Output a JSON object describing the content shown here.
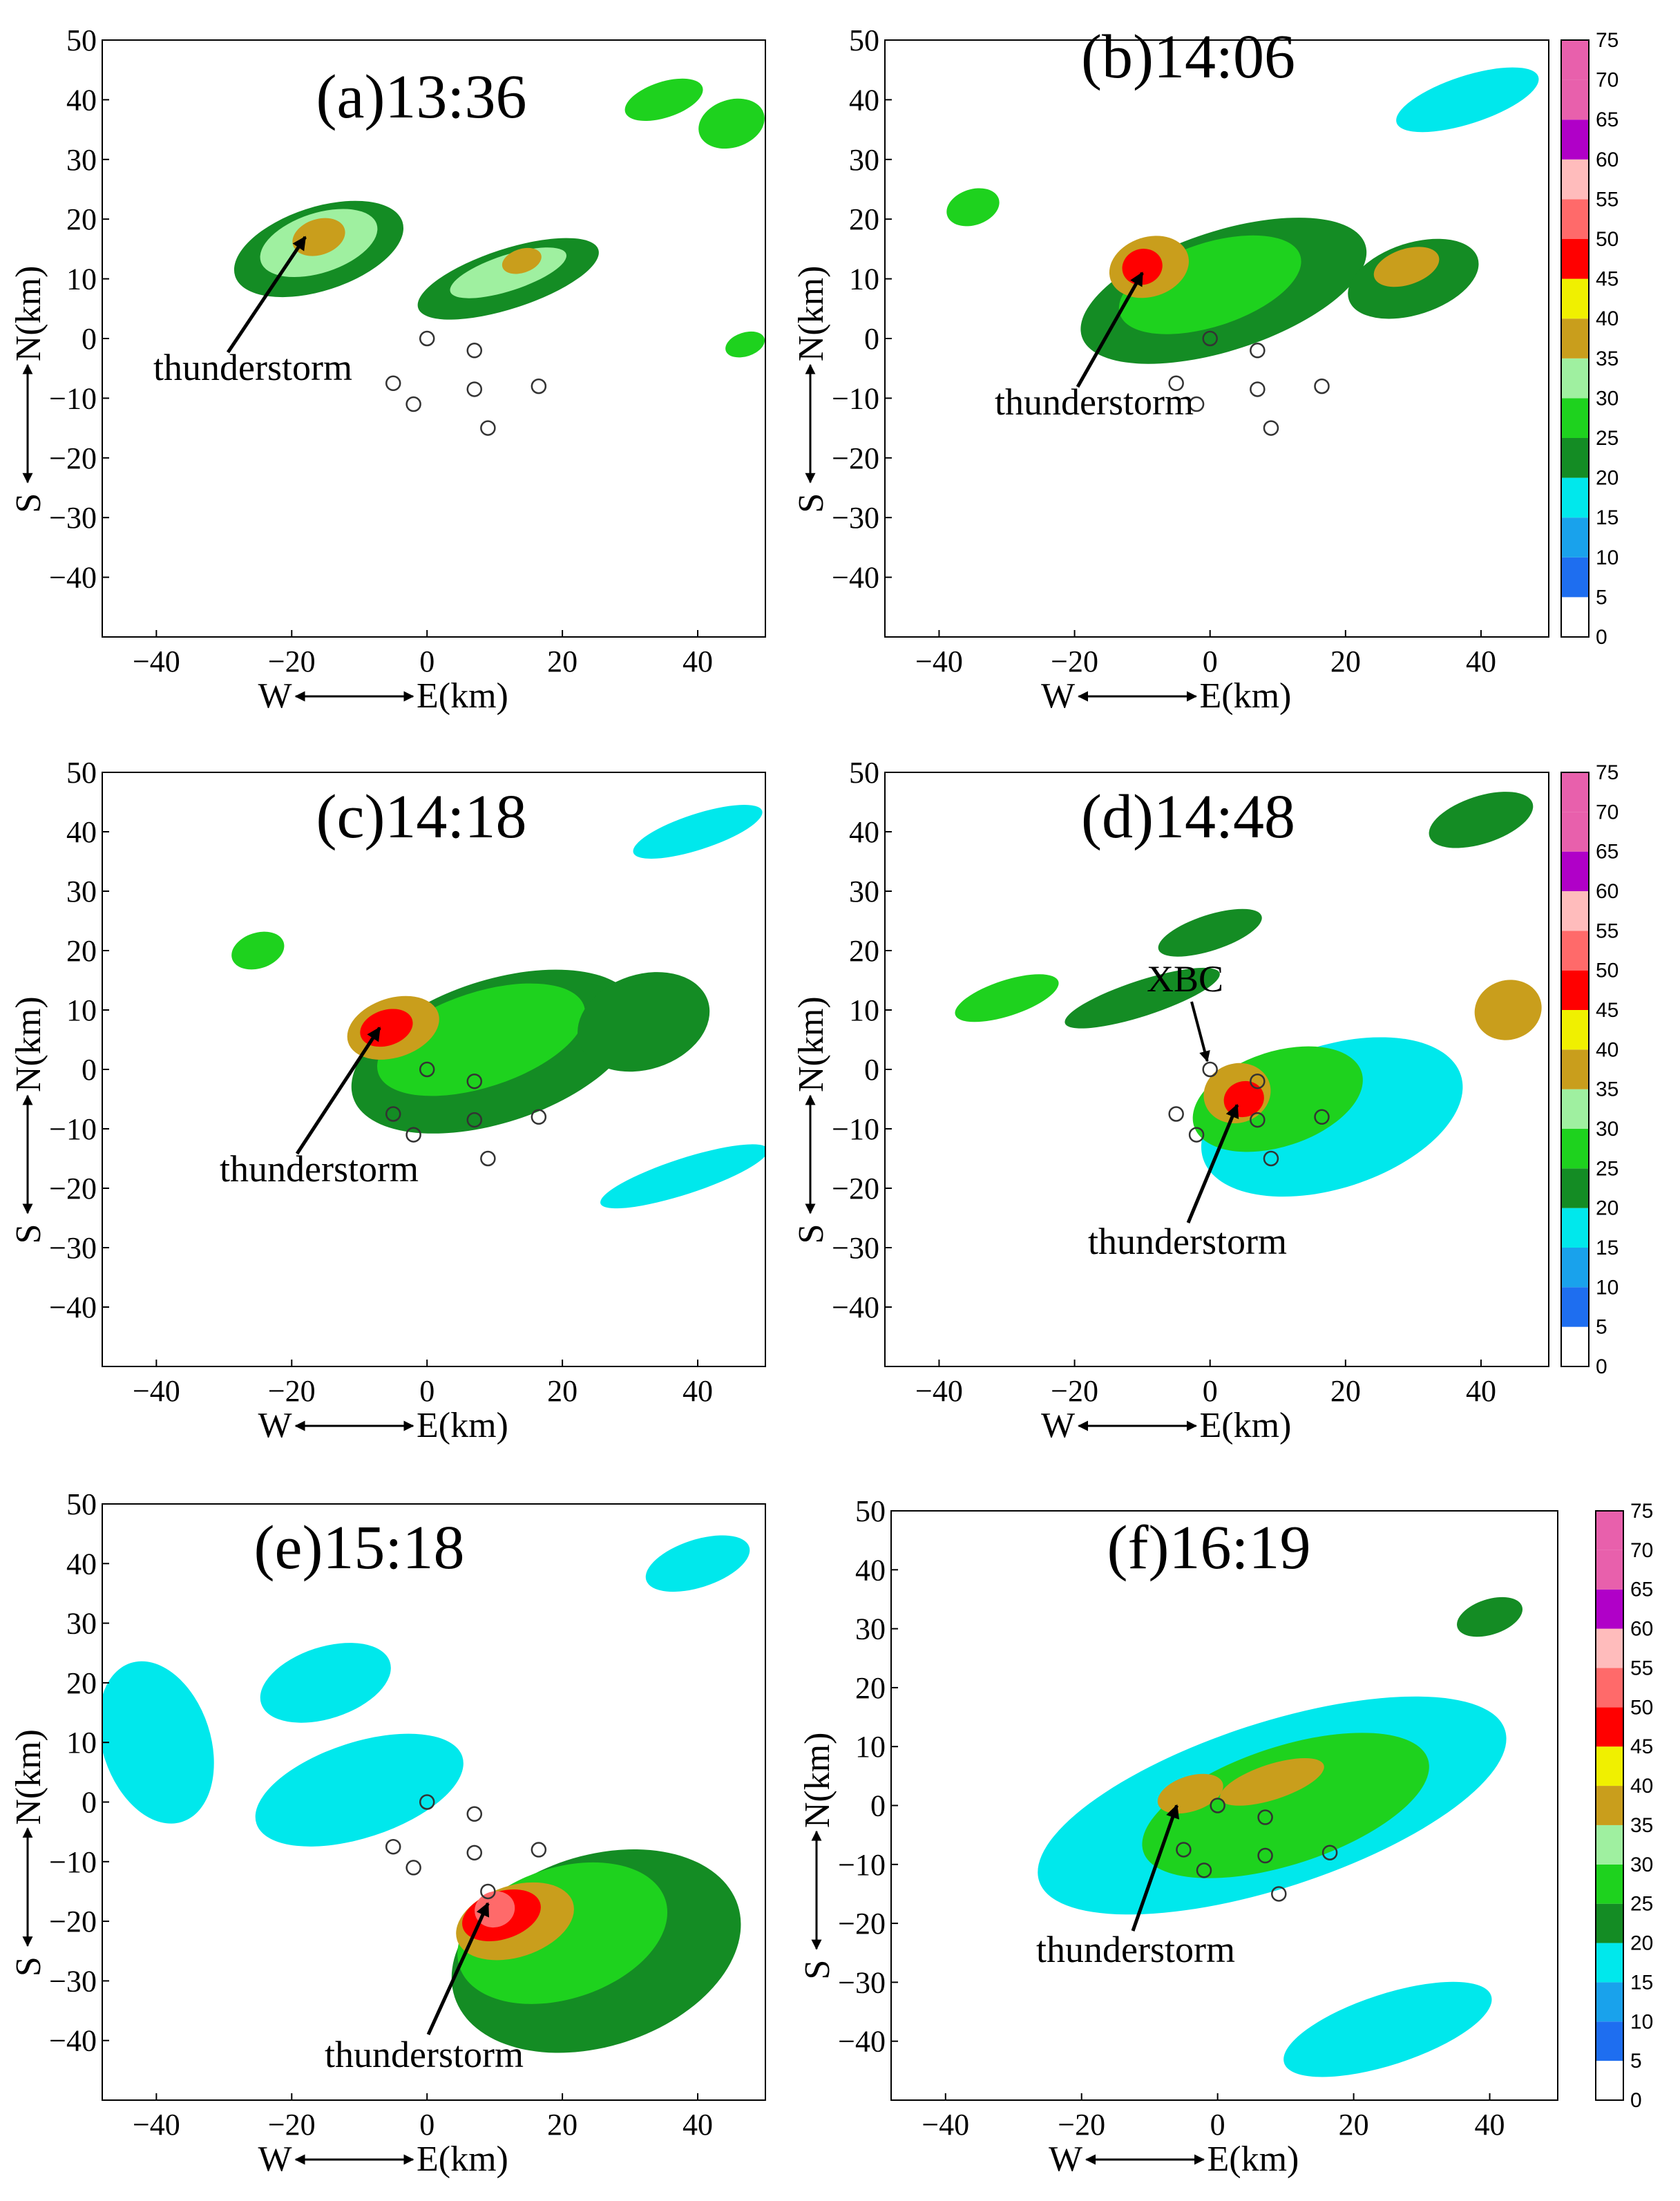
{
  "chart_data": [
    {
      "type": "heatmap",
      "panel": "(a)13:36",
      "title": "(a)13:36",
      "xlabel": "E(km)",
      "xlabel_prefix": "W",
      "ylabel": "N(km)",
      "ylabel_prefix": "S",
      "xlim": [
        -48,
        50
      ],
      "ylim": [
        -50,
        50
      ],
      "xticks": [
        -40,
        -20,
        0,
        20,
        40
      ],
      "yticks": [
        50,
        40,
        30,
        20,
        10,
        0,
        -10,
        -20,
        -30,
        -40
      ],
      "annotations": [
        {
          "text": "thunderstorm",
          "target": [
            -18,
            17
          ]
        }
      ],
      "stations": [
        [
          0,
          0
        ],
        [
          7,
          -2
        ],
        [
          -5,
          -7.5
        ],
        [
          7,
          -8.5
        ],
        [
          16.5,
          -8
        ],
        [
          -2,
          -11
        ],
        [
          9,
          -15
        ]
      ],
      "cells": [
        {
          "x": -16,
          "y": 15,
          "rx": 13,
          "ry": 7,
          "dbz": 20
        },
        {
          "x": -16,
          "y": 16,
          "rx": 9,
          "ry": 5,
          "dbz": 30
        },
        {
          "x": -16,
          "y": 17,
          "rx": 4,
          "ry": 3,
          "dbz": 38
        },
        {
          "x": 12,
          "y": 10,
          "rx": 14,
          "ry": 5,
          "dbz": 20
        },
        {
          "x": 12,
          "y": 11,
          "rx": 9,
          "ry": 3,
          "dbz": 30
        },
        {
          "x": 14,
          "y": 13,
          "rx": 3,
          "ry": 2,
          "dbz": 38
        },
        {
          "x": 35,
          "y": 40,
          "rx": 6,
          "ry": 3,
          "dbz": 25
        },
        {
          "x": 45,
          "y": 36,
          "rx": 5,
          "ry": 4,
          "dbz": 25
        },
        {
          "x": 47,
          "y": -1,
          "rx": 3,
          "ry": 2,
          "dbz": 25
        }
      ]
    },
    {
      "type": "heatmap",
      "panel": "(b)14:06",
      "title": "(b)14:06",
      "xlabel": "E(km)",
      "xlabel_prefix": "W",
      "ylabel": "N(km)",
      "ylabel_prefix": "S",
      "xlim": [
        -48,
        50
      ],
      "ylim": [
        -50,
        50
      ],
      "xticks": [
        -40,
        -20,
        0,
        20,
        40
      ],
      "yticks": [
        50,
        40,
        30,
        20,
        10,
        0,
        -10,
        -20,
        -30,
        -40
      ],
      "annotations": [
        {
          "text": "thunderstorm",
          "target": [
            -10,
            11
          ]
        }
      ],
      "stations": [
        [
          0,
          0
        ],
        [
          7,
          -2
        ],
        [
          -5,
          -7.5
        ],
        [
          7,
          -8.5
        ],
        [
          16.5,
          -8
        ],
        [
          -2,
          -11
        ],
        [
          9,
          -15
        ]
      ],
      "cells": [
        {
          "x": 2,
          "y": 8,
          "rx": 22,
          "ry": 10,
          "dbz": 20
        },
        {
          "x": 0,
          "y": 9,
          "rx": 14,
          "ry": 7,
          "dbz": 28
        },
        {
          "x": -9,
          "y": 12,
          "rx": 6,
          "ry": 5,
          "dbz": 35
        },
        {
          "x": -10,
          "y": 12,
          "rx": 3,
          "ry": 3,
          "dbz": 45
        },
        {
          "x": 30,
          "y": 10,
          "rx": 10,
          "ry": 6,
          "dbz": 22
        },
        {
          "x": 29,
          "y": 12,
          "rx": 5,
          "ry": 3,
          "dbz": 38
        },
        {
          "x": 38,
          "y": 40,
          "rx": 11,
          "ry": 4,
          "dbz": 18
        },
        {
          "x": -35,
          "y": 22,
          "rx": 4,
          "ry": 3,
          "dbz": 25
        }
      ]
    },
    {
      "type": "heatmap",
      "panel": "(c)14:18",
      "title": "(c)14:18",
      "xlabel": "E(km)",
      "xlabel_prefix": "W",
      "ylabel": "N(km)",
      "ylabel_prefix": "S",
      "xlim": [
        -48,
        50
      ],
      "ylim": [
        -50,
        50
      ],
      "xticks": [
        -40,
        -20,
        0,
        20,
        40
      ],
      "yticks": [
        50,
        40,
        30,
        20,
        10,
        0,
        -10,
        -20,
        -30,
        -40
      ],
      "annotations": [
        {
          "text": "thunderstorm",
          "target": [
            -7,
            7
          ]
        }
      ],
      "stations": [
        [
          0,
          0
        ],
        [
          7,
          -2
        ],
        [
          -5,
          -7.5
        ],
        [
          7,
          -8.5
        ],
        [
          16.5,
          -8
        ],
        [
          -2,
          -11
        ],
        [
          9,
          -15
        ]
      ],
      "cells": [
        {
          "x": 10,
          "y": 3,
          "rx": 22,
          "ry": 12,
          "dbz": 20
        },
        {
          "x": 8,
          "y": 5,
          "rx": 16,
          "ry": 8,
          "dbz": 25
        },
        {
          "x": -5,
          "y": 7,
          "rx": 7,
          "ry": 5,
          "dbz": 35
        },
        {
          "x": -6,
          "y": 7,
          "rx": 4,
          "ry": 3,
          "dbz": 45
        },
        {
          "x": 32,
          "y": 8,
          "rx": 10,
          "ry": 8,
          "dbz": 22
        },
        {
          "x": 38,
          "y": -18,
          "rx": 13,
          "ry": 3,
          "dbz": 15
        },
        {
          "x": 40,
          "y": 40,
          "rx": 10,
          "ry": 3,
          "dbz": 18
        },
        {
          "x": -25,
          "y": 20,
          "rx": 4,
          "ry": 3,
          "dbz": 25
        }
      ]
    },
    {
      "type": "heatmap",
      "panel": "(d)14:48",
      "title": "(d)14:48",
      "xlabel": "E(km)",
      "xlabel_prefix": "W",
      "ylabel": "N(km)",
      "ylabel_prefix": "S",
      "xlim": [
        -48,
        50
      ],
      "ylim": [
        -50,
        50
      ],
      "xticks": [
        -40,
        -20,
        0,
        20,
        40
      ],
      "yticks": [
        50,
        40,
        30,
        20,
        10,
        0,
        -10,
        -20,
        -30,
        -40
      ],
      "annotations": [
        {
          "text": "XBC",
          "target": [
            0,
            0
          ]
        },
        {
          "text": "thunderstorm",
          "target": [
            4,
            -6
          ]
        }
      ],
      "stations": [
        [
          0,
          0
        ],
        [
          7,
          -2
        ],
        [
          -5,
          -7.5
        ],
        [
          7,
          -8.5
        ],
        [
          16.5,
          -8
        ],
        [
          -2,
          -11
        ],
        [
          9,
          -15
        ]
      ],
      "cells": [
        {
          "x": 18,
          "y": -8,
          "rx": 20,
          "ry": 12,
          "dbz": 18
        },
        {
          "x": 10,
          "y": -5,
          "rx": 13,
          "ry": 8,
          "dbz": 25
        },
        {
          "x": 4,
          "y": -4,
          "rx": 5,
          "ry": 5,
          "dbz": 38
        },
        {
          "x": 5,
          "y": -5,
          "rx": 3,
          "ry": 3,
          "dbz": 45
        },
        {
          "x": -30,
          "y": 12,
          "rx": 8,
          "ry": 3,
          "dbz": 25
        },
        {
          "x": -10,
          "y": 12,
          "rx": 12,
          "ry": 3,
          "dbz": 20
        },
        {
          "x": 44,
          "y": 10,
          "rx": 5,
          "ry": 5,
          "dbz": 35
        },
        {
          "x": 40,
          "y": 42,
          "rx": 8,
          "ry": 4,
          "dbz": 22
        },
        {
          "x": 0,
          "y": 23,
          "rx": 8,
          "ry": 3,
          "dbz": 22
        }
      ]
    },
    {
      "type": "heatmap",
      "panel": "(e)15:18",
      "title": "(e)15:18",
      "xlabel": "E(km)",
      "xlabel_prefix": "W",
      "ylabel": "N(km)",
      "ylabel_prefix": "S",
      "xlim": [
        -48,
        50
      ],
      "ylim": [
        -50,
        50
      ],
      "xticks": [
        -40,
        -20,
        0,
        20,
        40
      ],
      "yticks": [
        50,
        40,
        30,
        20,
        10,
        0,
        -10,
        -20,
        -30,
        -40
      ],
      "annotations": [
        {
          "text": "thunderstorm",
          "target": [
            9,
            -17
          ]
        }
      ],
      "stations": [
        [
          0,
          0
        ],
        [
          7,
          -2
        ],
        [
          -5,
          -7.5
        ],
        [
          7,
          -8.5
        ],
        [
          16.5,
          -8
        ],
        [
          -2,
          -11
        ],
        [
          9,
          -15
        ]
      ],
      "cells": [
        {
          "x": 25,
          "y": -25,
          "rx": 22,
          "ry": 16,
          "dbz": 20
        },
        {
          "x": 20,
          "y": -22,
          "rx": 16,
          "ry": 11,
          "dbz": 28
        },
        {
          "x": 13,
          "y": -20,
          "rx": 9,
          "ry": 6,
          "dbz": 38
        },
        {
          "x": 11,
          "y": -19,
          "rx": 6,
          "ry": 4,
          "dbz": 45
        },
        {
          "x": 10,
          "y": -18,
          "rx": 3,
          "ry": 3,
          "dbz": 52
        },
        {
          "x": -10,
          "y": 2,
          "rx": 16,
          "ry": 8,
          "dbz": 18
        },
        {
          "x": -15,
          "y": 20,
          "rx": 10,
          "ry": 6,
          "dbz": 18
        },
        {
          "x": -40,
          "y": 10,
          "rx": 8,
          "ry": 14,
          "dbz": 15
        },
        {
          "x": 40,
          "y": 40,
          "rx": 8,
          "ry": 4,
          "dbz": 18
        }
      ]
    },
    {
      "type": "heatmap",
      "panel": "(f)16:19",
      "title": "(f)16:19",
      "xlabel": "E(km)",
      "xlabel_prefix": "W",
      "ylabel": "N(km)",
      "ylabel_prefix": "S",
      "xlim": [
        -48,
        50
      ],
      "ylim": [
        -50,
        50
      ],
      "xticks": [
        -40,
        -20,
        0,
        20,
        40
      ],
      "yticks": [
        50,
        40,
        30,
        20,
        10,
        0,
        -10,
        -20,
        -30,
        -40
      ],
      "annotations": [
        {
          "text": "thunderstorm",
          "target": [
            -6,
            0
          ]
        }
      ],
      "stations": [
        [
          0,
          0
        ],
        [
          7,
          -2
        ],
        [
          -5,
          -7.5
        ],
        [
          7,
          -8.5
        ],
        [
          16.5,
          -8
        ],
        [
          -2,
          -11
        ],
        [
          9,
          -15
        ]
      ],
      "cells": [
        {
          "x": 8,
          "y": 0,
          "rx": 36,
          "ry": 14,
          "dbz": 18
        },
        {
          "x": 10,
          "y": 0,
          "rx": 22,
          "ry": 10,
          "dbz": 25
        },
        {
          "x": -4,
          "y": 2,
          "rx": 5,
          "ry": 3,
          "dbz": 38
        },
        {
          "x": 8,
          "y": 4,
          "rx": 8,
          "ry": 3,
          "dbz": 35
        },
        {
          "x": 25,
          "y": -38,
          "rx": 16,
          "ry": 6,
          "dbz": 18
        },
        {
          "x": 40,
          "y": 32,
          "rx": 5,
          "ry": 3,
          "dbz": 22
        }
      ]
    }
  ],
  "colorbar": {
    "ticks": [
      "75",
      "70",
      "65",
      "60",
      "55",
      "50",
      "45",
      "40",
      "35",
      "30",
      "25",
      "20",
      "15",
      "10",
      "5",
      "0"
    ],
    "colors": [
      "#ffffff",
      "#1e6ef0",
      "#19a2ec",
      "#00e8ec",
      "#148c24",
      "#1ed21e",
      "#9ff0a0",
      "#c99e1c",
      "#f0f000",
      "#ff0000",
      "#ff6a6a",
      "#ffbcbc",
      "#b000c8",
      "#e860ac"
    ]
  }
}
